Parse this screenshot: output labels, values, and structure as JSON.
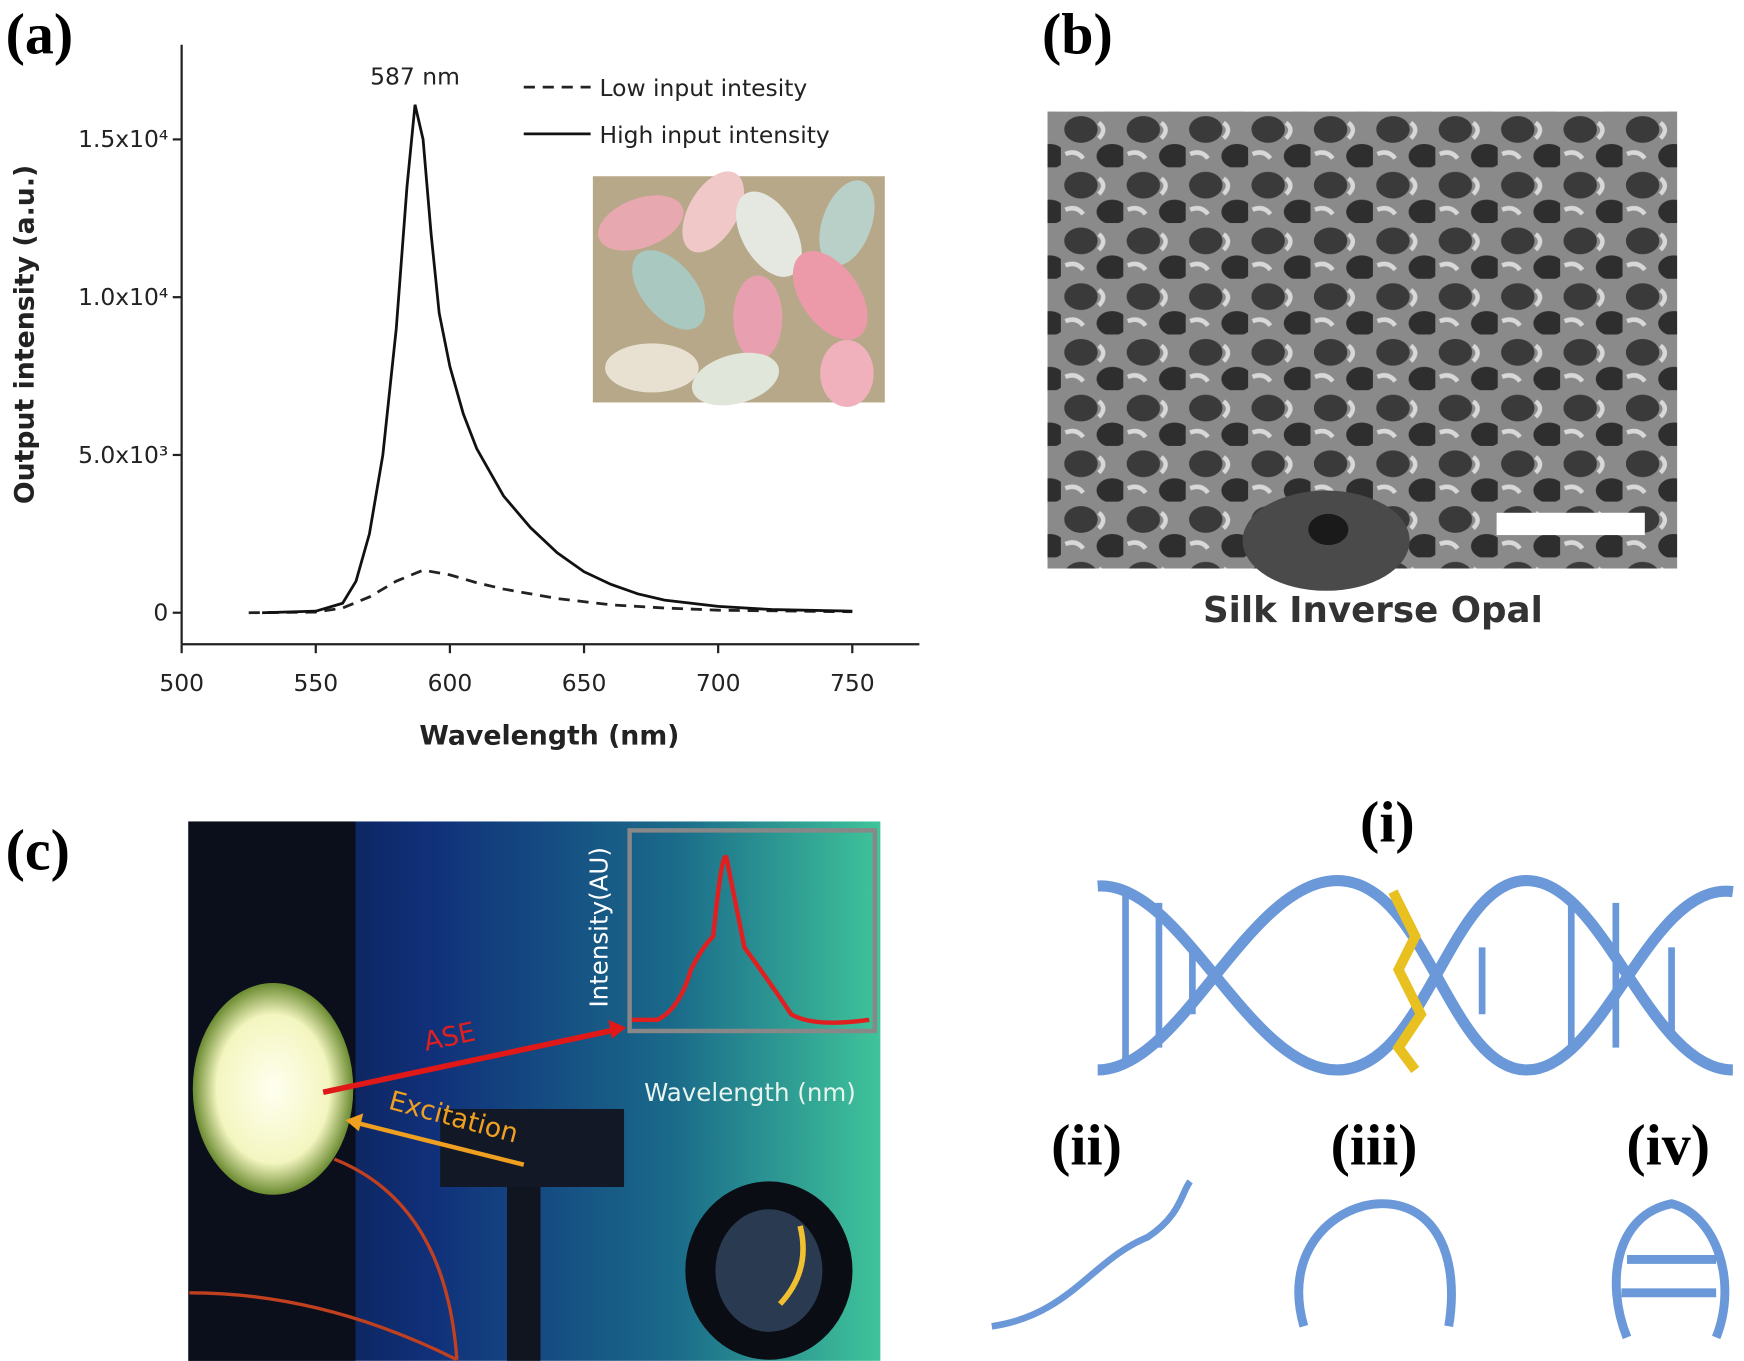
{
  "panel_labels": [
    "(a)",
    "(b)",
    "(c)"
  ],
  "chart_data": {
    "type": "line",
    "x_label": "Wavelength (nm)",
    "y_label": "Output intensity (a.u.)",
    "annotation": "587 nm",
    "xlim": [
      500,
      775
    ],
    "xticks": [
      500,
      550,
      600,
      650,
      700,
      750
    ],
    "ylim": [
      -1000,
      18000
    ],
    "yticks": [
      0,
      {
        "value": 5000,
        "label": "5.0x10³"
      },
      {
        "value": 10000,
        "label": "1.0x10⁴"
      },
      {
        "value": 15000,
        "label": "1.5x10⁴"
      }
    ],
    "grid": false,
    "legend": "upper right",
    "series": [
      {
        "name": "Low input intesity",
        "color": "#222222",
        "linestyle": "dashed",
        "x": [
          525,
          550,
          560,
          570,
          580,
          590,
          600,
          610,
          620,
          640,
          660,
          680,
          700,
          750
        ],
        "values": [
          0,
          20,
          150,
          500,
          1000,
          1350,
          1200,
          950,
          750,
          450,
          250,
          150,
          80,
          30
        ]
      },
      {
        "name": "High input intensity",
        "color": "#111111",
        "linestyle": "solid",
        "x": [
          530,
          550,
          560,
          565,
          570,
          575,
          580,
          584,
          587,
          590,
          593,
          596,
          600,
          605,
          610,
          620,
          630,
          640,
          650,
          660,
          670,
          680,
          700,
          720,
          750
        ],
        "values": [
          0,
          50,
          300,
          1000,
          2500,
          5000,
          9000,
          13500,
          16100,
          15000,
          12000,
          9500,
          7800,
          6300,
          5200,
          3700,
          2700,
          1900,
          1300,
          900,
          600,
          400,
          200,
          100,
          50
        ]
      }
    ]
  },
  "panel_b": {
    "caption": "Silk Inverse Opal"
  },
  "panel_c": {
    "ase": "ASE",
    "excitation": "Excitation",
    "inset_y_label": "Intensity(AU)",
    "inset_x_label": "Wavelength (nm)"
  },
  "panel_d": {
    "labels": [
      "(i)",
      "(ii)",
      "(iii)",
      "(iv)"
    ]
  }
}
